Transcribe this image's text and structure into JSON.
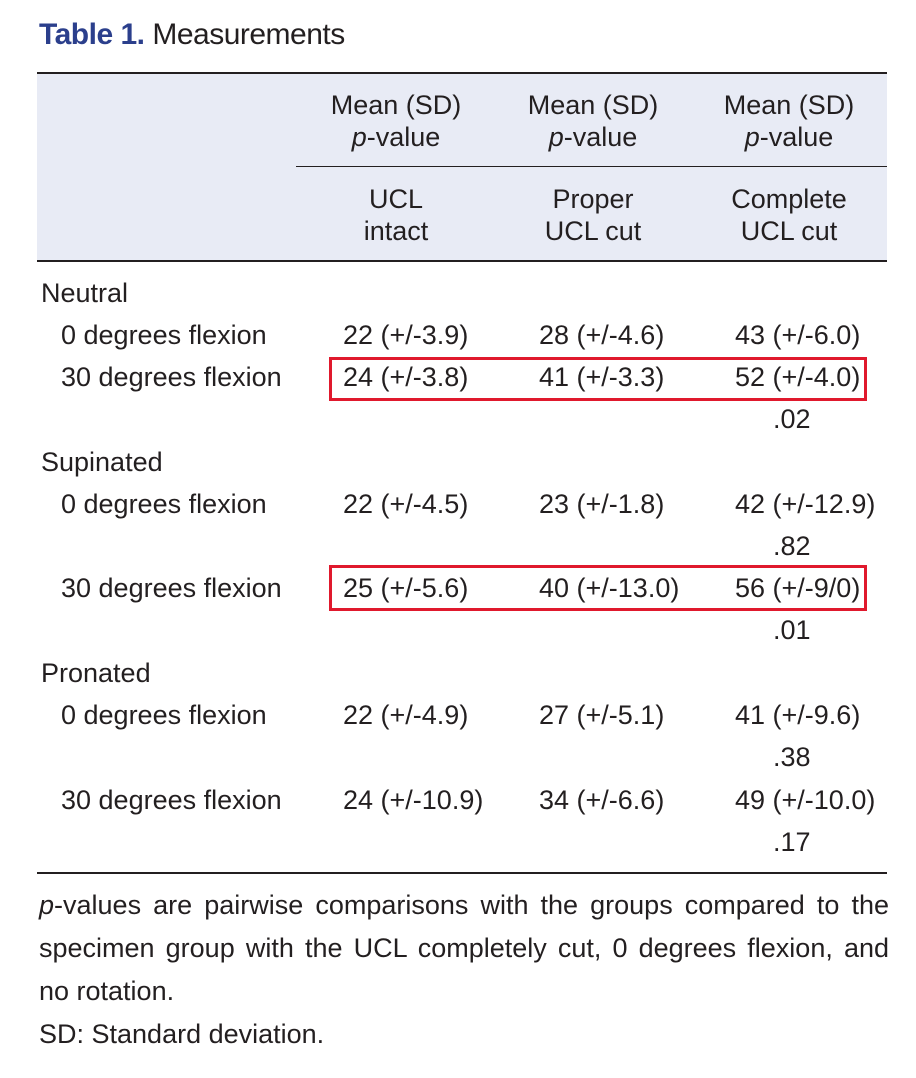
{
  "title": {
    "label": "Table 1.",
    "caption": "Measurements"
  },
  "header": {
    "top": [
      {
        "line1": "Mean (SD)",
        "p": "p",
        "rest": "-value"
      },
      {
        "line1": "Mean (SD)",
        "p": "p",
        "rest": "-value"
      },
      {
        "line1": "Mean (SD)",
        "p": "p",
        "rest": "-value"
      }
    ],
    "groups": [
      {
        "line1": "UCL",
        "line2": "intact"
      },
      {
        "line1": "Proper",
        "line2": "UCL cut"
      },
      {
        "line1": "Complete",
        "line2": "UCL cut"
      }
    ]
  },
  "sections": [
    {
      "name": "Neutral",
      "rows": [
        {
          "label": "0 degrees flexion",
          "values": [
            "22 (+/-3.9)",
            "28 (+/-4.6)",
            "43 (+/-6.0)"
          ],
          "p": ""
        },
        {
          "label": "30 degrees flexion",
          "values": [
            "24 (+/-3.8)",
            "41 (+/-3.3)",
            "52 (+/-4.0)"
          ],
          "p": ".02"
        }
      ]
    },
    {
      "name": "Supinated",
      "rows": [
        {
          "label": "0 degrees flexion",
          "values": [
            "22 (+/-4.5)",
            "23 (+/-1.8)",
            "42 (+/-12.9)"
          ],
          "p": ".82"
        },
        {
          "label": "30 degrees flexion",
          "values": [
            "25 (+/-5.6)",
            "40 (+/-13.0)",
            "56 (+/-9/0)"
          ],
          "p": ".01"
        }
      ]
    },
    {
      "name": "Pronated",
      "rows": [
        {
          "label": "0 degrees flexion",
          "values": [
            "22 (+/-4.9)",
            "27 (+/-5.1)",
            "41 (+/-9.6)"
          ],
          "p": ".38"
        },
        {
          "label": "30 degrees flexion",
          "values": [
            "24 (+/-10.9)",
            "34 (+/-6.6)",
            "49 (+/-10.0)"
          ],
          "p": ".17"
        }
      ]
    }
  ],
  "footnote": {
    "p": "p",
    "text": "-values are pairwise comparisons with the groups compared to the specimen group with the UCL completely cut, 0 degrees flexion, and no rotation.",
    "sd": "SD: Standard deviation."
  },
  "colors": {
    "title_label": "#2b3f8c",
    "header_band": "#e8ebf5",
    "highlight": "#e0192d",
    "text": "#231f20"
  }
}
